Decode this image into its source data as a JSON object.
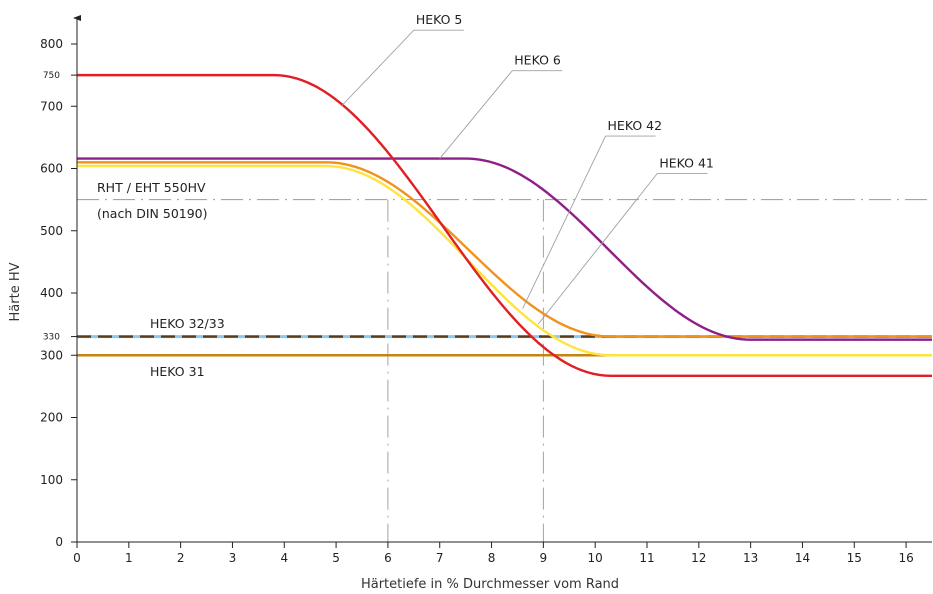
{
  "chart_data": {
    "type": "line",
    "title": "",
    "xlabel": "Härtetiefe in % Durchmesser vom Rand",
    "ylabel": "Härte HV",
    "xlim": [
      0,
      16.5
    ],
    "ylim": [
      0,
      800
    ],
    "xticks": [
      0,
      1,
      2,
      3,
      4,
      5,
      6,
      7,
      8,
      9,
      10,
      11,
      12,
      13,
      14,
      15,
      16
    ],
    "yticks": [
      0,
      100,
      200,
      300,
      400,
      500,
      600,
      700,
      800
    ],
    "yticks_small": [
      330,
      750
    ],
    "grid": false,
    "series": [
      {
        "name": "HEKO 5",
        "color": "#e01e24",
        "style": "solid",
        "x_start": 3.8,
        "x_end": 10.3,
        "y_start": 750,
        "y_end": 267
      },
      {
        "name": "HEKO 6",
        "color": "#8e1f87",
        "style": "solid",
        "x_start": 7.5,
        "x_end": 13.0,
        "y_start": 616,
        "y_end": 325
      },
      {
        "name": "HEKO 42",
        "color": "#f0921e",
        "style": "solid",
        "x_start": 4.8,
        "x_end": 10.3,
        "y_start": 610,
        "y_end": 330
      },
      {
        "name": "HEKO 41",
        "color": "#ffe43c",
        "style": "solid",
        "x_start": 4.8,
        "x_end": 10.3,
        "y_start": 604,
        "y_end": 300
      },
      {
        "name": "HEKO 32/33",
        "color": "#8ec8ec",
        "color2": "#5a3a17",
        "style": "dashed",
        "x_start": 0,
        "x_end": 16.5,
        "y_start": 330,
        "y_end": 330
      },
      {
        "name": "HEKO 31",
        "color": "#c48413",
        "style": "solid",
        "x_start": 0,
        "x_end": 16.5,
        "y_start": 300,
        "y_end": 300
      }
    ],
    "reference": {
      "y": 550,
      "label_line1": "RHT / EHT 550HV",
      "label_line2": "(nach DIN 50190)",
      "vlines": [
        6,
        9
      ]
    },
    "callouts": [
      {
        "text": "HEKO 5",
        "label_x": 6.5,
        "label_y": 835,
        "target_x": 5.1,
        "target_y": 700
      },
      {
        "text": "HEKO 6",
        "label_x": 8.4,
        "label_y": 770,
        "target_x": 7.0,
        "target_y": 616
      },
      {
        "text": "HEKO 42",
        "label_x": 10.2,
        "label_y": 665,
        "target_x": 8.6,
        "target_y": 375
      },
      {
        "text": "HEKO 41",
        "label_x": 11.2,
        "label_y": 605,
        "target_x": 8.9,
        "target_y": 350
      }
    ]
  }
}
